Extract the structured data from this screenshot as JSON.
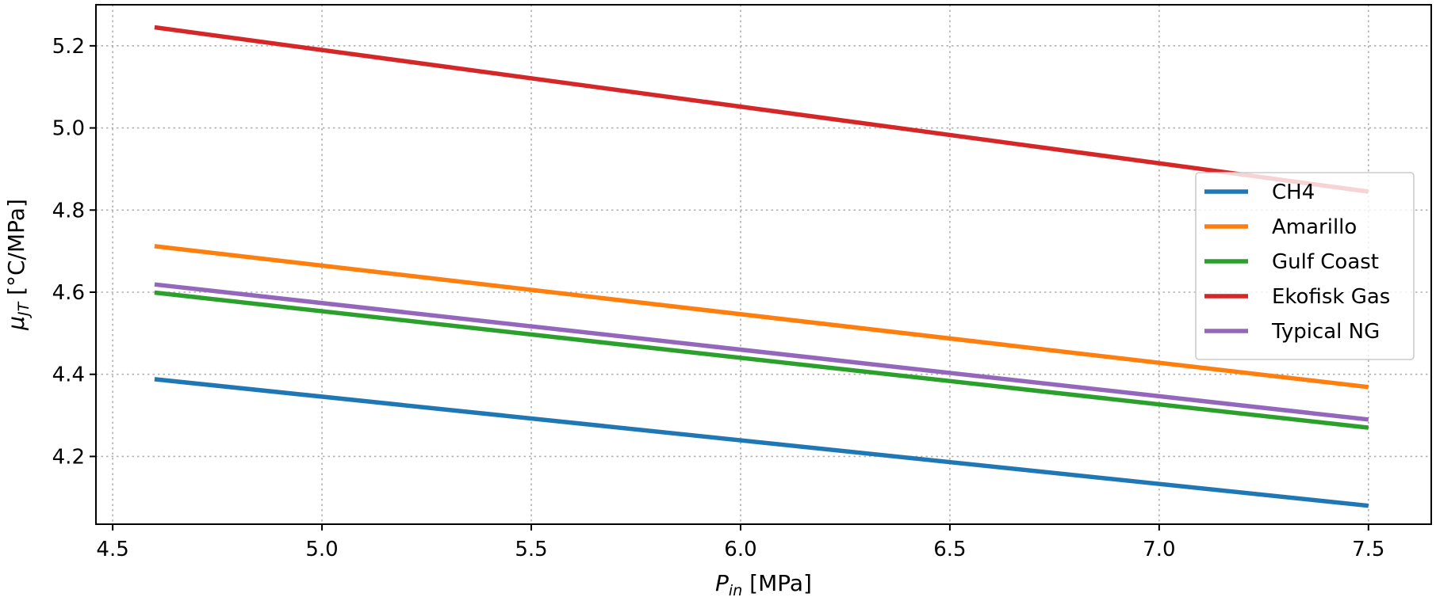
{
  "chart_data": {
    "type": "line",
    "xlabel": {
      "main": "P",
      "sub": "in",
      "unit": " [MPa]"
    },
    "ylabel": {
      "main": "μ",
      "sub": "JT",
      "unit": " [°C/MPa]"
    },
    "xlim": [
      4.46,
      7.65
    ],
    "ylim": [
      4.035,
      5.3
    ],
    "xticks": [
      "4.5",
      "5.0",
      "5.5",
      "6.0",
      "6.5",
      "7.0",
      "7.5"
    ],
    "yticks": [
      "4.2",
      "4.4",
      "4.6",
      "4.8",
      "5.0",
      "5.2"
    ],
    "grid": true,
    "legend_position": "right",
    "x": [
      4.6,
      7.5
    ],
    "series": [
      {
        "name": "CH4",
        "color": "#1f77b4",
        "values": [
          4.388,
          4.08
        ]
      },
      {
        "name": "Amarillo",
        "color": "#ff7f0e",
        "values": [
          4.712,
          4.369
        ]
      },
      {
        "name": "Gulf Coast",
        "color": "#2ca02c",
        "values": [
          4.599,
          4.27
        ]
      },
      {
        "name": "Ekofisk Gas",
        "color": "#d62728",
        "values": [
          5.245,
          4.845
        ]
      },
      {
        "name": "Typical NG",
        "color": "#9467bd",
        "values": [
          4.619,
          4.29
        ]
      }
    ]
  }
}
